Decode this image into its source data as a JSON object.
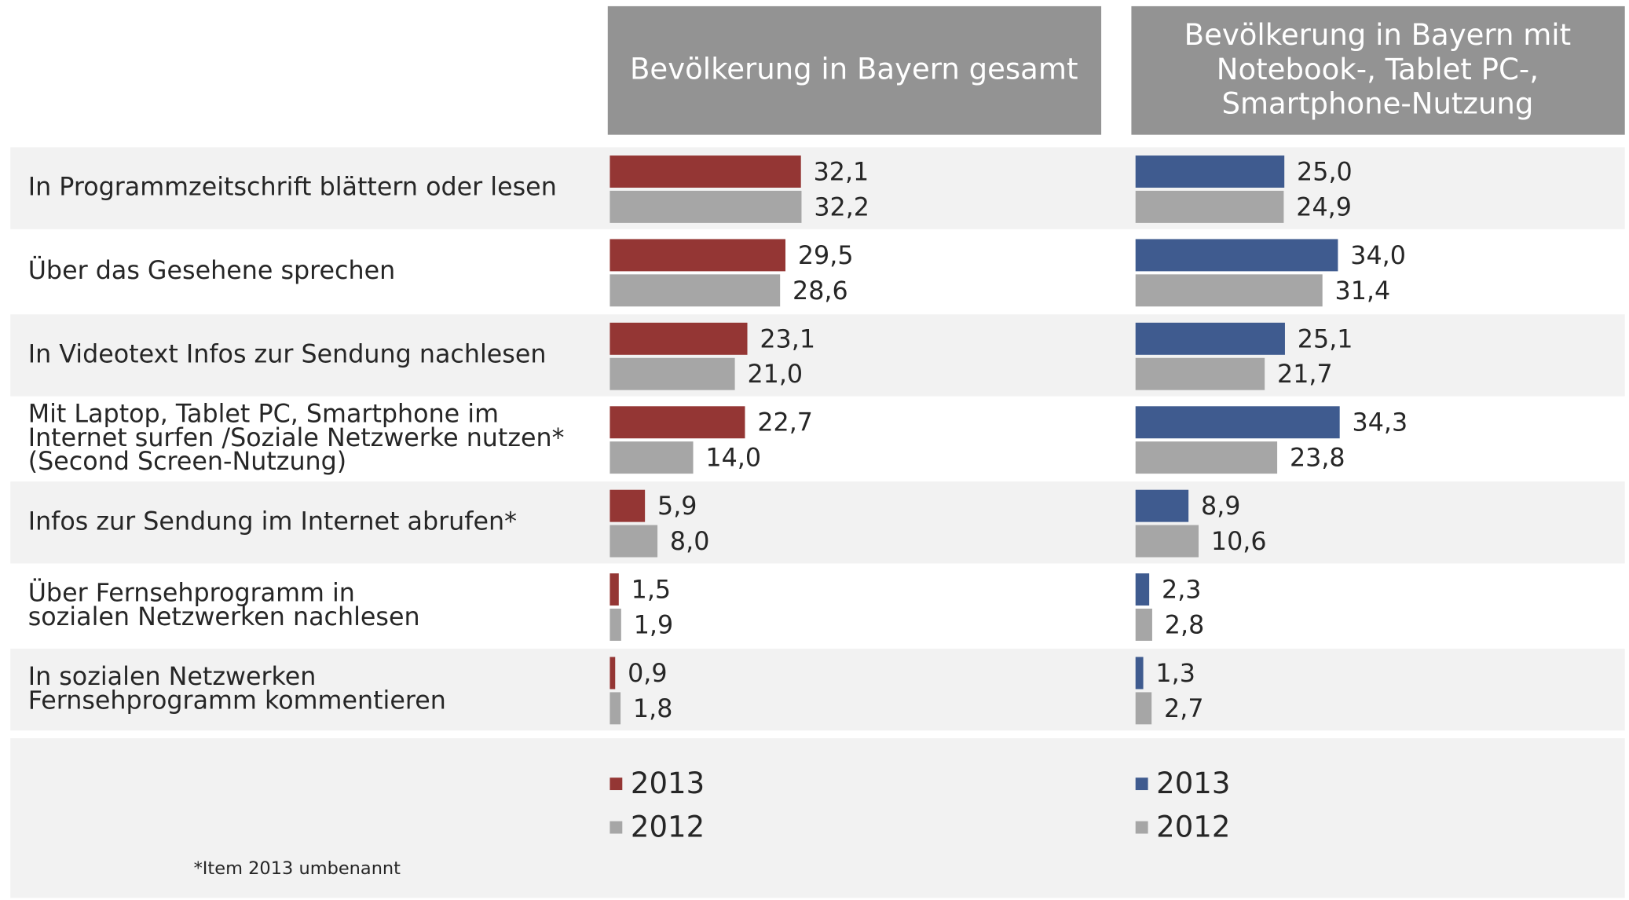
{
  "chart_data": [
    {
      "type": "bar",
      "title": "Bevölkerung in Bayern gesamt",
      "categories": [
        "In Programmzeitschrift blättern oder lesen",
        "Über das Gesehene sprechen",
        "In Videotext Infos zur Sendung nachlesen",
        "Mit Laptop, Tablet PC, Smartphone im\nInternet surfen /Soziale Netzwerke nutzen*\n(Second Screen-Nutzung)",
        "Infos zur Sendung im Internet abrufen*",
        "Über Fernsehprogramm in\nsozialen Netzwerken nachlesen",
        "In sozialen Netzwerken\nFernsehprogramm kommentieren"
      ],
      "series": [
        {
          "name": "2013",
          "color": "#943634",
          "values": [
            32.1,
            29.5,
            23.1,
            22.7,
            5.9,
            1.5,
            0.9
          ],
          "value_labels": [
            "32,1",
            "29,5",
            "23,1",
            "22,7",
            "5,9",
            "1,5",
            "0,9"
          ]
        },
        {
          "name": "2012",
          "color": "#a6a6a6",
          "values": [
            32.2,
            28.6,
            21.0,
            14.0,
            8.0,
            1.9,
            1.8
          ],
          "value_labels": [
            "32,2",
            "28,6",
            "21,0",
            "14,0",
            "8,0",
            "1,9",
            "1,8"
          ]
        }
      ]
    },
    {
      "type": "bar",
      "title": "Bevölkerung in Bayern mit\nNotebook-, Tablet PC-,\nSmartphone-Nutzung",
      "series": [
        {
          "name": "2013",
          "color": "#3f5b8f",
          "values": [
            25.0,
            34.0,
            25.1,
            34.3,
            8.9,
            2.3,
            1.3
          ],
          "value_labels": [
            "25,0",
            "34,0",
            "25,1",
            "34,3",
            "8,9",
            "2,3",
            "1,3"
          ]
        },
        {
          "name": "2012",
          "color": "#a6a6a6",
          "values": [
            24.9,
            31.4,
            21.7,
            23.8,
            10.6,
            2.8,
            2.7
          ],
          "value_labels": [
            "24,9",
            "31,4",
            "21,7",
            "23,8",
            "10,6",
            "2,8",
            "2,7"
          ]
        }
      ]
    }
  ],
  "footnote": "*Item 2013 umbenannt"
}
